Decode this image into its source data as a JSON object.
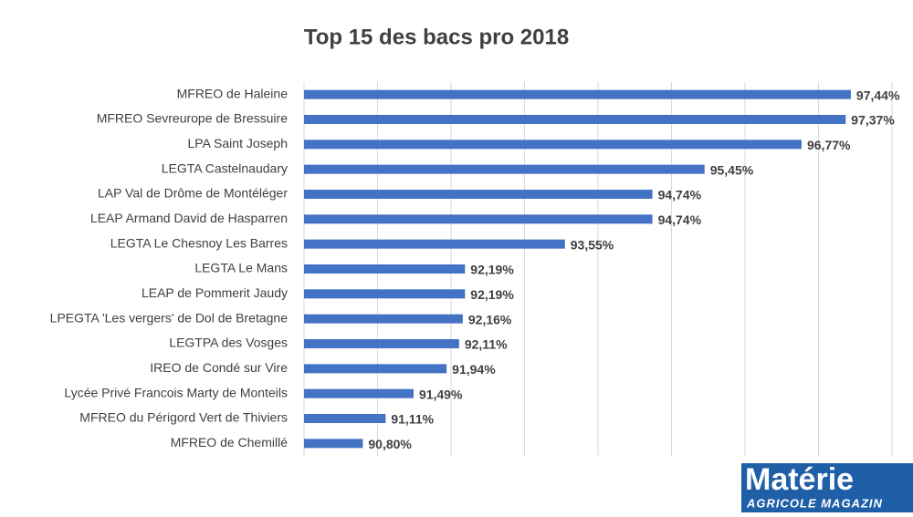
{
  "chart_data": {
    "type": "barh",
    "title": "Top 15 des bacs pro 2018",
    "categories": [
      "MFREO de Haleine",
      "MFREO Sevreurope de Bressuire",
      "LPA Saint Joseph",
      "LEGTA Castelnaudary",
      "LAP Val de Drôme de Montéléger",
      "LEAP Armand David de Hasparren",
      "LEGTA Le Chesnoy Les Barres",
      "LEGTA Le Mans",
      "LEAP de Pommerit Jaudy",
      "LPEGTA 'Les vergers' de Dol de Bretagne",
      "LEGTPA des Vosges",
      "IREO de Condé sur Vire",
      "Lycée Privé Francois Marty de Monteils",
      "MFREO du Périgord Vert de Thiviers",
      "MFREO de Chemillé"
    ],
    "values": [
      97.44,
      97.37,
      96.77,
      95.45,
      94.74,
      94.74,
      93.55,
      92.19,
      92.19,
      92.16,
      92.11,
      91.94,
      91.49,
      91.11,
      90.8
    ],
    "value_labels": [
      "97,44%",
      "97,37%",
      "96,77%",
      "95,45%",
      "94,74%",
      "94,74%",
      "93,55%",
      "92,19%",
      "92,19%",
      "92,16%",
      "92,11%",
      "91,94%",
      "91,49%",
      "91,11%",
      "90,80%"
    ],
    "color": "#4472c4",
    "xlim": [
      90,
      98
    ],
    "xticks": [
      90,
      91,
      92,
      93,
      94,
      95,
      96,
      97,
      98
    ],
    "grid": true
  },
  "logo": {
    "title": "Matérie",
    "subtitle": "AGRICOLE MAGAZIN"
  }
}
